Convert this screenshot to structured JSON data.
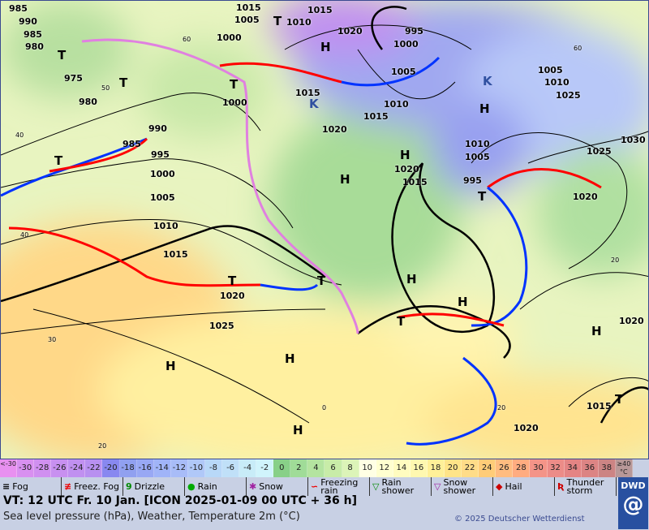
{
  "map": {
    "pressure_labels": [
      "985",
      "990",
      "985",
      "980",
      "975",
      "980",
      "985",
      "990",
      "995",
      "1000",
      "1005",
      "1010",
      "1015",
      "1020",
      "1025",
      "1015",
      "1005",
      "1000",
      "1010",
      "1015",
      "1020",
      "1000",
      "995",
      "1000",
      "1005",
      "1010",
      "1015",
      "1020",
      "1015",
      "1010",
      "1005",
      "995",
      "1020",
      "1025",
      "1030",
      "1015",
      "1020",
      "1025",
      "1020",
      "1015",
      "1020",
      "1005",
      "1010"
    ],
    "high_low_labels": [
      "T",
      "T",
      "T",
      "T",
      "T",
      "T",
      "T",
      "H",
      "H",
      "H",
      "H",
      "H",
      "H",
      "H",
      "H",
      "T",
      "H",
      "H",
      "T",
      "T",
      "K",
      "K"
    ],
    "temp_labels": [
      "40",
      "50",
      "60",
      "30",
      "20",
      "40",
      "60",
      "0",
      "20",
      "20"
    ]
  },
  "colors": {
    "warm_front": "#ff0000",
    "cold_front": "#0033ff",
    "occlusion": "#e080e0",
    "isobar": "#000000"
  },
  "scale": {
    "cells": [
      {
        "label": "<-30",
        "color": "#e890f0"
      },
      {
        "label": "-30",
        "color": "#d890f0"
      },
      {
        "label": "-28",
        "color": "#d090f0"
      },
      {
        "label": "-26",
        "color": "#c890f0"
      },
      {
        "label": "-24",
        "color": "#c090f0"
      },
      {
        "label": "-22",
        "color": "#b890f0"
      },
      {
        "label": "-20",
        "color": "#8888f0"
      },
      {
        "label": "-18",
        "color": "#90a0f0"
      },
      {
        "label": "-16",
        "color": "#98a8f4"
      },
      {
        "label": "-14",
        "color": "#a0b4f8"
      },
      {
        "label": "-12",
        "color": "#a8bcf8"
      },
      {
        "label": "-10",
        "color": "#b0c8f8"
      },
      {
        "label": "-8",
        "color": "#b8d8f8"
      },
      {
        "label": "-6",
        "color": "#c0e0f8"
      },
      {
        "label": "-4",
        "color": "#c8ecf8"
      },
      {
        "label": "-2",
        "color": "#d0f4fc"
      },
      {
        "label": "0",
        "color": "#88d088"
      },
      {
        "label": "2",
        "color": "#a0dc98"
      },
      {
        "label": "4",
        "color": "#b4e4a0"
      },
      {
        "label": "6",
        "color": "#c8eca8"
      },
      {
        "label": "8",
        "color": "#dcf4b8"
      },
      {
        "label": "10",
        "color": "#ffffe4"
      },
      {
        "label": "12",
        "color": "#ffffd0"
      },
      {
        "label": "14",
        "color": "#fffcc0"
      },
      {
        "label": "16",
        "color": "#fff8b0"
      },
      {
        "label": "18",
        "color": "#fff098"
      },
      {
        "label": "20",
        "color": "#ffe488"
      },
      {
        "label": "22",
        "color": "#ffdc88"
      },
      {
        "label": "24",
        "color": "#ffcc78"
      },
      {
        "label": "26",
        "color": "#ffbc80"
      },
      {
        "label": "28",
        "color": "#ffac80"
      },
      {
        "label": "30",
        "color": "#f49488"
      },
      {
        "label": "32",
        "color": "#ec8c88"
      },
      {
        "label": "34",
        "color": "#e48484"
      },
      {
        "label": "36",
        "color": "#dc8484"
      },
      {
        "label": "38",
        "color": "#cc8484"
      },
      {
        "label": "≥40 °C",
        "color": "#b89898"
      }
    ]
  },
  "legend": [
    {
      "icon": "fog-icon",
      "glyph": "≡",
      "color": "#000",
      "label": "Fog"
    },
    {
      "icon": "freezing-fog-icon",
      "glyph": "≢",
      "color": "#e00",
      "label": "Freez. Fog"
    },
    {
      "icon": "drizzle-icon",
      "glyph": "9",
      "color": "#080",
      "label": "Drizzle"
    },
    {
      "icon": "rain-icon",
      "glyph": "●",
      "color": "#0a0",
      "label": "Rain"
    },
    {
      "icon": "snow-icon",
      "glyph": "✱",
      "color": "#a020a0",
      "label": "Snow"
    },
    {
      "icon": "freezing-rain-icon",
      "glyph": "∽",
      "color": "#e00",
      "label": "Freezing rain"
    },
    {
      "icon": "rain-shower-icon",
      "glyph": "▽",
      "color": "#080",
      "label": "Rain shower"
    },
    {
      "icon": "snow-shower-icon",
      "glyph": "▽",
      "color": "#a020a0",
      "label": "Snow shower"
    },
    {
      "icon": "hail-icon",
      "glyph": "◆",
      "color": "#c00",
      "label": "Hail"
    },
    {
      "icon": "thunderstorm-icon",
      "glyph": "Ʀ",
      "color": "#c00",
      "label": "Thunder storm"
    }
  ],
  "footer": {
    "valid_time": "VT: 12 UTC Fr.  10 Jan. [ICON 2025-01-09  00 UTC + 36 h]",
    "subtitle": "Sea level pressure (hPa), Weather, Temperature 2m (°C)",
    "copyright": "© 2025 Deutscher Wetterdienst",
    "logo": "DWD"
  }
}
